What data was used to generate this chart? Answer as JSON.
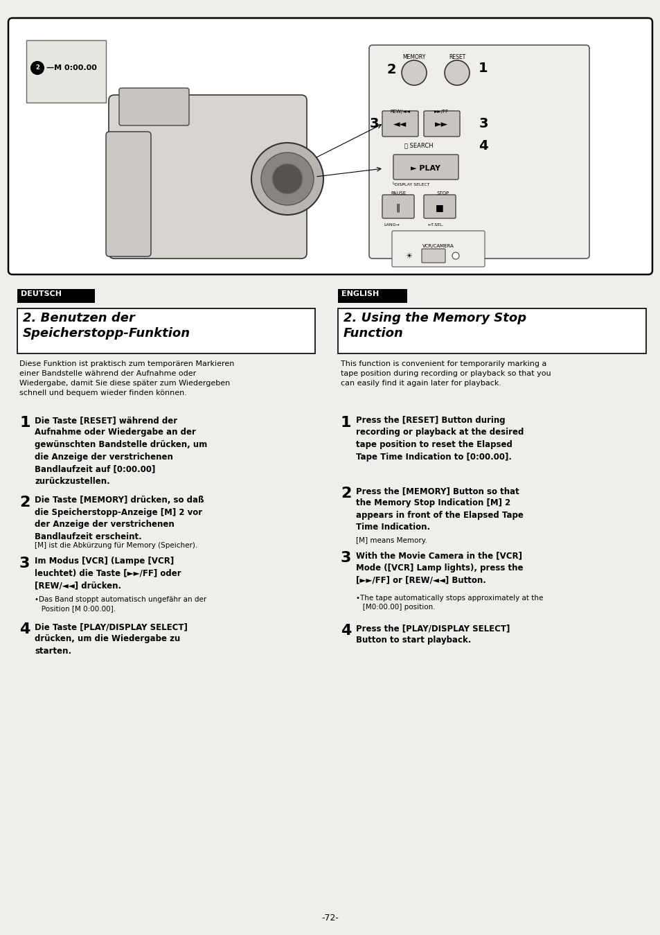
{
  "page_bg": "#f0eeea",
  "border_color": "#000000",
  "page_number": "-72-",
  "deutsch_label": "DEUTSCH",
  "english_label": "ENGLISH",
  "de_title_line1": "2. Benutzen der",
  "de_title_line2": "    Speicherstopp-Funktion",
  "en_title_line1": "2. Using the Memory Stop",
  "en_title_line2": "    Function",
  "de_intro": "Diese Funktion ist praktisch zum temporären Markieren\neiner Bandstelle während der Aufnahme oder\nWiedergabe, damit Sie diese später zum Wiedergeben\nschnell und bequem wieder finden können.",
  "en_intro": "This function is convenient for temporarily marking a\ntape position during recording or playback so that you\ncan easily find it again later for playback.",
  "de_step1_bold": "Die Taste [RESET] während der\nAufnahme oder Wiedergabe an der\ngewünschten Bandstelle drücken, um\ndie Anzeige der verstrichenen\nBandlaufzeit auf [0:00.00]\nzurückzustellen.",
  "en_step1_bold": "Press the [RESET] Button during\nrecording or playback at the desired\ntape position to reset the Elapsed\nTape Time Indication to [0:00.00].",
  "de_step2_bold": "Die Taste [MEMORY] drücken, so daß\ndie Speicherstopp-Anzeige [M] 2 vor\nder Anzeige der verstrichenen\nBandlaufzeit erscheint.",
  "de_step2_note": "[M] ist die Abkürzung für Memory (Speicher).",
  "en_step2_bold": "Press the [MEMORY] Button so that\nthe Memory Stop Indication [M] 2\nappears in front of the Elapsed Tape\nTime Indication.",
  "en_step2_note": "[M] means Memory.",
  "de_step3_bold": "Im Modus [VCR] (Lampe [VCR]\nleuchtet) die Taste [►►/FF] oder\n[REW/◄◄] drücken.",
  "de_step3_note": "•Das Band stoppt automatisch ungefähr an der\n   Position [M 0:00.00].",
  "en_step3_bold": "With the Movie Camera in the [VCR]\nMode ([VCR] Lamp lights), press the\n[►►/FF] or [REW/◄◄] Button.",
  "en_step3_note": "•The tape automatically stops approximately at the\n   [M0:00.00] position.",
  "de_step4_bold": "Die Taste [PLAY/DISPLAY SELECT]\ndrücken, um die Wiedergabe zu\nstarten.",
  "en_step4_bold": "Press the [PLAY/DISPLAY SELECT]\nButton to start playback."
}
